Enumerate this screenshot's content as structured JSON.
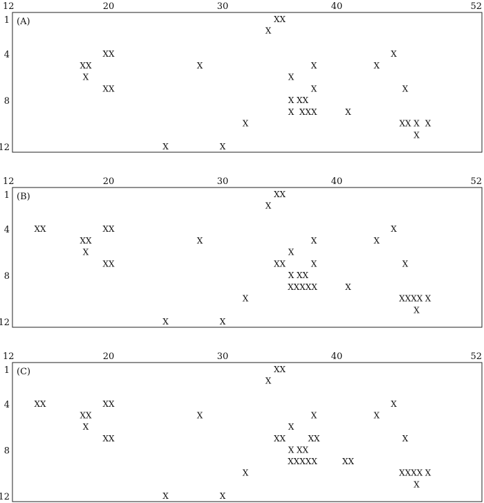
{
  "chart_data": [
    {
      "type": "scatter",
      "panel_label": "(A)",
      "marker": "X",
      "x_ticks": [
        "12",
        "20",
        "30",
        "40",
        "52"
      ],
      "y_ticks": [
        "1",
        "4",
        "8",
        "12"
      ],
      "xlim": [
        12,
        52
      ],
      "ylim": [
        1,
        12
      ],
      "points": [
        {
          "x": 35,
          "y": 1,
          "label": "XX"
        },
        {
          "x": 34,
          "y": 2,
          "label": "X"
        },
        {
          "x": 20,
          "y": 4,
          "label": "XX"
        },
        {
          "x": 45,
          "y": 4,
          "label": "X"
        },
        {
          "x": 18,
          "y": 5,
          "label": "XX"
        },
        {
          "x": 28,
          "y": 5,
          "label": "X"
        },
        {
          "x": 38,
          "y": 5,
          "label": "X"
        },
        {
          "x": 43.5,
          "y": 5,
          "label": "X"
        },
        {
          "x": 18,
          "y": 6,
          "label": "X"
        },
        {
          "x": 36,
          "y": 6,
          "label": "X"
        },
        {
          "x": 20,
          "y": 7,
          "label": "XX"
        },
        {
          "x": 38,
          "y": 7,
          "label": "X"
        },
        {
          "x": 46,
          "y": 7,
          "label": "X"
        },
        {
          "x": 36,
          "y": 8,
          "label": "X"
        },
        {
          "x": 37,
          "y": 8,
          "label": "XX"
        },
        {
          "x": 36,
          "y": 9,
          "label": "X"
        },
        {
          "x": 37.5,
          "y": 9,
          "label": "XXX"
        },
        {
          "x": 41,
          "y": 9,
          "label": "X"
        },
        {
          "x": 32,
          "y": 10,
          "label": "X"
        },
        {
          "x": 46,
          "y": 10,
          "label": "XX"
        },
        {
          "x": 47,
          "y": 10,
          "label": "X"
        },
        {
          "x": 48,
          "y": 10,
          "label": "X"
        },
        {
          "x": 47,
          "y": 11,
          "label": "X"
        },
        {
          "x": 25,
          "y": 12,
          "label": "X"
        },
        {
          "x": 30,
          "y": 12,
          "label": "X"
        }
      ]
    },
    {
      "type": "scatter",
      "panel_label": "(B)",
      "marker": "X",
      "x_ticks": [
        "12",
        "20",
        "30",
        "40",
        "52"
      ],
      "y_ticks": [
        "1",
        "4",
        "8",
        "12"
      ],
      "xlim": [
        12,
        52
      ],
      "ylim": [
        1,
        12
      ],
      "points": [
        {
          "x": 35,
          "y": 1,
          "label": "XX"
        },
        {
          "x": 34,
          "y": 2,
          "label": "X"
        },
        {
          "x": 14,
          "y": 4,
          "label": "XX"
        },
        {
          "x": 20,
          "y": 4,
          "label": "XX"
        },
        {
          "x": 45,
          "y": 4,
          "label": "X"
        },
        {
          "x": 18,
          "y": 5,
          "label": "XX"
        },
        {
          "x": 28,
          "y": 5,
          "label": "X"
        },
        {
          "x": 38,
          "y": 5,
          "label": "X"
        },
        {
          "x": 43.5,
          "y": 5,
          "label": "X"
        },
        {
          "x": 18,
          "y": 6,
          "label": "X"
        },
        {
          "x": 36,
          "y": 6,
          "label": "X"
        },
        {
          "x": 20,
          "y": 7,
          "label": "XX"
        },
        {
          "x": 35,
          "y": 7,
          "label": "XX"
        },
        {
          "x": 38,
          "y": 7,
          "label": "X"
        },
        {
          "x": 46,
          "y": 7,
          "label": "X"
        },
        {
          "x": 36,
          "y": 8,
          "label": "X"
        },
        {
          "x": 37,
          "y": 8,
          "label": "XX"
        },
        {
          "x": 37,
          "y": 9,
          "label": "XXXXX"
        },
        {
          "x": 41,
          "y": 9,
          "label": "X"
        },
        {
          "x": 32,
          "y": 10,
          "label": "X"
        },
        {
          "x": 46.5,
          "y": 10,
          "label": "XXXX"
        },
        {
          "x": 48,
          "y": 10,
          "label": "X"
        },
        {
          "x": 47,
          "y": 11,
          "label": "X"
        },
        {
          "x": 25,
          "y": 12,
          "label": "X"
        },
        {
          "x": 30,
          "y": 12,
          "label": "X"
        }
      ]
    },
    {
      "type": "scatter",
      "panel_label": "(C)",
      "marker": "X",
      "x_ticks": [
        "12",
        "20",
        "30",
        "40",
        "52"
      ],
      "y_ticks": [
        "1",
        "4",
        "8",
        "12"
      ],
      "xlim": [
        12,
        52
      ],
      "ylim": [
        1,
        12
      ],
      "points": [
        {
          "x": 35,
          "y": 1,
          "label": "XX"
        },
        {
          "x": 34,
          "y": 2,
          "label": "X"
        },
        {
          "x": 14,
          "y": 4,
          "label": "XX"
        },
        {
          "x": 20,
          "y": 4,
          "label": "XX"
        },
        {
          "x": 45,
          "y": 4,
          "label": "X"
        },
        {
          "x": 18,
          "y": 5,
          "label": "XX"
        },
        {
          "x": 28,
          "y": 5,
          "label": "X"
        },
        {
          "x": 38,
          "y": 5,
          "label": "X"
        },
        {
          "x": 43.5,
          "y": 5,
          "label": "X"
        },
        {
          "x": 18,
          "y": 6,
          "label": "X"
        },
        {
          "x": 36,
          "y": 6,
          "label": "X"
        },
        {
          "x": 20,
          "y": 7,
          "label": "XX"
        },
        {
          "x": 35,
          "y": 7,
          "label": "XX"
        },
        {
          "x": 38,
          "y": 7,
          "label": "XX"
        },
        {
          "x": 46,
          "y": 7,
          "label": "X"
        },
        {
          "x": 36,
          "y": 8,
          "label": "X"
        },
        {
          "x": 37,
          "y": 8,
          "label": "XX"
        },
        {
          "x": 37,
          "y": 9,
          "label": "XXXXX"
        },
        {
          "x": 41,
          "y": 9,
          "label": "XX"
        },
        {
          "x": 32,
          "y": 10,
          "label": "X"
        },
        {
          "x": 46.5,
          "y": 10,
          "label": "XXXX"
        },
        {
          "x": 48,
          "y": 10,
          "label": "X"
        },
        {
          "x": 47,
          "y": 11,
          "label": "X"
        },
        {
          "x": 25,
          "y": 12,
          "label": "X"
        },
        {
          "x": 30,
          "y": 12,
          "label": "X"
        }
      ]
    }
  ]
}
